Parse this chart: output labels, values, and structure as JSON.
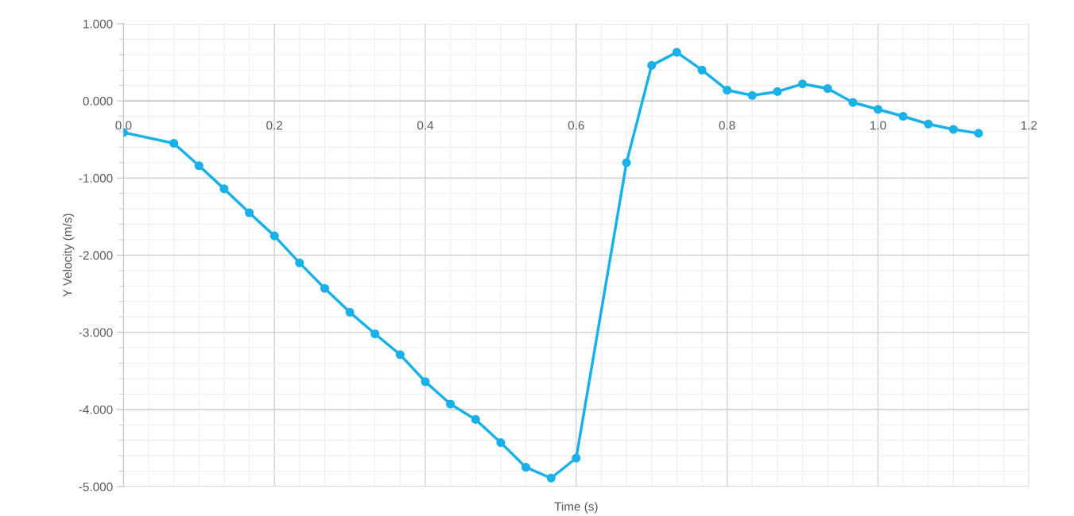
{
  "chart_data": {
    "type": "line",
    "xlabel": "Time (s)",
    "ylabel": "Y Velocity (m/s)",
    "x": [
      0,
      0.0667,
      0.1,
      0.1333,
      0.1667,
      0.2,
      0.2333,
      0.2667,
      0.3,
      0.3333,
      0.3667,
      0.4,
      0.4333,
      0.4667,
      0.5,
      0.5333,
      0.5667,
      0.6,
      0.6667,
      0.7,
      0.7333,
      0.7667,
      0.8,
      0.8333,
      0.8667,
      0.9,
      0.9333,
      0.9667,
      1.0,
      1.0333,
      1.0667,
      1.1,
      1.1333
    ],
    "series": [
      {
        "color": "#1ab0e8",
        "values": [
          -0.41,
          -0.55,
          -0.84,
          -1.14,
          -1.45,
          -1.75,
          -2.1,
          -2.43,
          -2.74,
          -3.02,
          -3.29,
          -3.64,
          -3.93,
          -4.13,
          -4.43,
          -4.75,
          -4.89,
          -4.63,
          -0.8,
          0.46,
          0.63,
          0.4,
          0.14,
          0.07,
          0.12,
          0.22,
          0.16,
          -0.02,
          -0.11,
          -0.2,
          -0.3,
          -0.37,
          -0.42
        ]
      }
    ],
    "xlim": [
      0,
      1.2
    ],
    "xticks": [
      {
        "value": 0,
        "label": "0.0"
      },
      0.2,
      0.4,
      0.6,
      0.8,
      {
        "value": 1.0,
        "label": "1.0"
      },
      1.2
    ],
    "ylim": [
      -5,
      1
    ],
    "yticks": [
      {
        "value": -5,
        "label": "-5.000"
      },
      {
        "value": -4,
        "label": "-4.000"
      },
      {
        "value": -3,
        "label": "-3.000"
      },
      {
        "value": -2,
        "label": "-2.000"
      },
      {
        "value": -1,
        "label": "-1.000"
      },
      {
        "value": 0,
        "label": "0.000"
      },
      {
        "value": 1,
        "label": "1.000"
      }
    ],
    "grid": true,
    "marker": "circle",
    "line_style": "solid",
    "legend": false
  }
}
